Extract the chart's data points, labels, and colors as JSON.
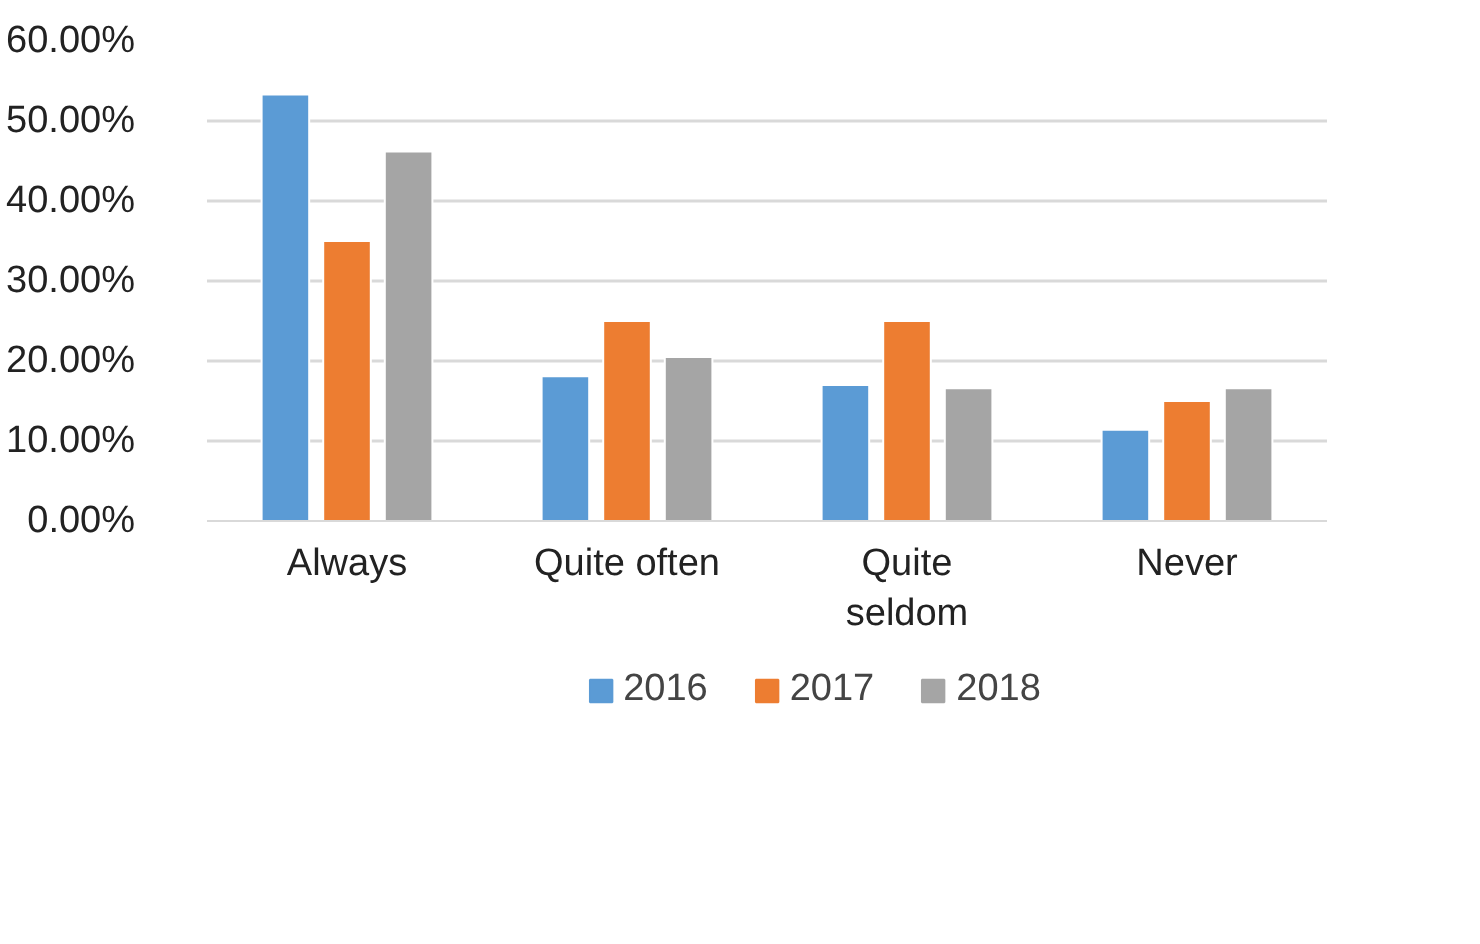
{
  "chart_data": {
    "type": "bar",
    "categories": [
      "Always",
      "Quite often",
      "Quite seldom",
      "Never"
    ],
    "series": [
      {
        "name": "2016",
        "color": "#5b9bd5",
        "values": [
          53.3,
          18.1,
          17.0,
          11.4
        ]
      },
      {
        "name": "2017",
        "color": "#ed7d31",
        "values": [
          35.0,
          25.0,
          25.0,
          15.0
        ]
      },
      {
        "name": "2018",
        "color": "#a5a5a5",
        "values": [
          46.2,
          20.5,
          16.6,
          16.6
        ]
      }
    ],
    "ylim": [
      0,
      60
    ],
    "yticks": [
      {
        "value": 0,
        "label": "0.00%"
      },
      {
        "value": 10,
        "label": "10.00%"
      },
      {
        "value": 20,
        "label": "20.00%"
      },
      {
        "value": 30,
        "label": "30.00%"
      },
      {
        "value": 40,
        "label": "40.00%"
      },
      {
        "value": 50,
        "label": "50.00%"
      },
      {
        "value": 60,
        "label": "60.00%"
      }
    ],
    "grid": "y",
    "legend": "bottom"
  }
}
